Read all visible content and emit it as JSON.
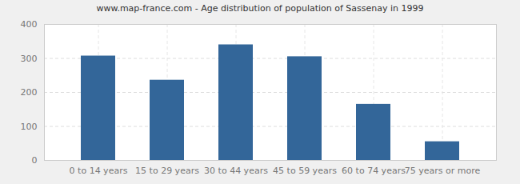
{
  "chart_data": {
    "type": "bar",
    "title": "www.map-france.com - Age distribution of population of Sassenay in 1999",
    "categories": [
      "0 to 14 years",
      "15 to 29 years",
      "30 to 44 years",
      "45 to 59 years",
      "60 to 74 years",
      "75 years or more"
    ],
    "values": [
      307,
      236,
      340,
      305,
      165,
      55
    ],
    "color": "#336699",
    "ylim": [
      0,
      400
    ],
    "yticks": [
      0,
      100,
      200,
      300,
      400
    ],
    "grid": true
  }
}
